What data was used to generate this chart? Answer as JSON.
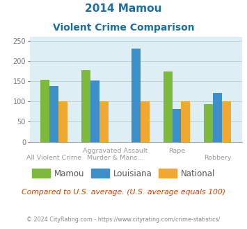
{
  "title_line1": "2014 Mamou",
  "title_line2": "Violent Crime Comparison",
  "series": {
    "Mamou": [
      153,
      178,
      0,
      174,
      93
    ],
    "Louisiana": [
      138,
      152,
      230,
      81,
      121
    ],
    "National": [
      100,
      100,
      100,
      101,
      101
    ]
  },
  "colors": {
    "Mamou": "#7db93d",
    "Louisiana": "#3d8fca",
    "National": "#f0a830"
  },
  "ylim": [
    0,
    260
  ],
  "yticks": [
    0,
    50,
    100,
    150,
    200,
    250
  ],
  "background_color": "#ddeef5",
  "footnote": "Compared to U.S. average. (U.S. average equals 100)",
  "copyright": "© 2024 CityRating.com - https://www.cityrating.com/crime-statistics/",
  "title_color": "#1a6fa0",
  "footnote_color": "#cc4400",
  "copyright_color": "#888888",
  "label_color": "#9aab9a",
  "n_groups": 5,
  "bar_width": 0.22
}
